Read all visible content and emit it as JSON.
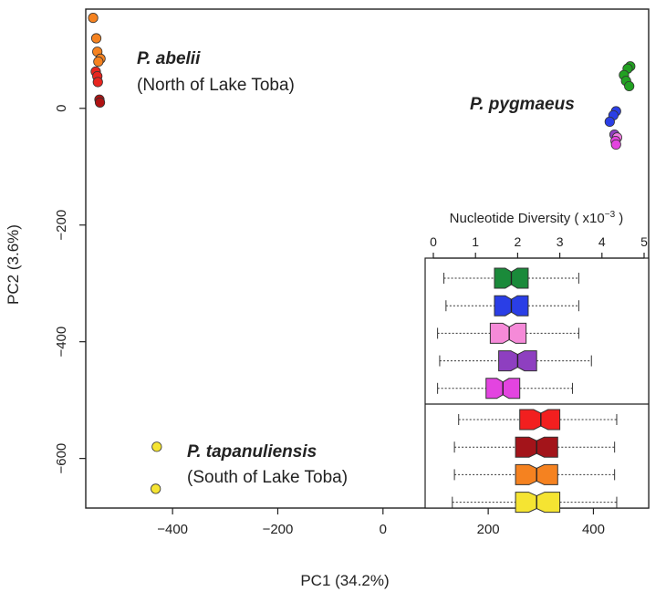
{
  "chart_data": {
    "type": "scatter",
    "xlabel": "PC1 (34.2%)",
    "ylabel": "PC2 (3.6%)",
    "xlim": [
      -565,
      505
    ],
    "ylim": [
      -685,
      170
    ],
    "xticks": [
      -400,
      -200,
      0,
      200,
      400
    ],
    "yticks": [
      0,
      -200,
      -400,
      -600
    ],
    "xtick_labels": [
      "−400",
      "−200",
      "0",
      "200",
      "400"
    ],
    "ytick_labels": [
      "0",
      "−200",
      "−400",
      "−600"
    ],
    "grid": false,
    "groups": [
      {
        "name": "P. abelii",
        "subtitle": "(North of Lake Toba)",
        "anchor": [
          -510,
          85
        ]
      },
      {
        "name": "P. pygmaeus",
        "subtitle": "",
        "anchor": [
          405,
          25
        ]
      },
      {
        "name": "P. tapanuliensis",
        "subtitle": "(South of Lake Toba)",
        "anchor": [
          -395,
          -585
        ]
      }
    ],
    "points": [
      {
        "x": -551,
        "y": 155,
        "color": "#f58220"
      },
      {
        "x": -545,
        "y": 120,
        "color": "#f58220"
      },
      {
        "x": -543,
        "y": 97,
        "color": "#f58220"
      },
      {
        "x": -537,
        "y": 85,
        "color": "#f58220"
      },
      {
        "x": -541,
        "y": 80,
        "color": "#f58220"
      },
      {
        "x": -546,
        "y": 63,
        "color": "#e8251f"
      },
      {
        "x": -543,
        "y": 55,
        "color": "#e8251f"
      },
      {
        "x": -542,
        "y": 45,
        "color": "#e8251f"
      },
      {
        "x": -539,
        "y": 15,
        "color": "#b01313"
      },
      {
        "x": -538,
        "y": 10,
        "color": "#b01313"
      },
      {
        "x": 470,
        "y": 72,
        "color": "#22a122"
      },
      {
        "x": 465,
        "y": 68,
        "color": "#22a122"
      },
      {
        "x": 458,
        "y": 57,
        "color": "#22a122"
      },
      {
        "x": 462,
        "y": 47,
        "color": "#22a122"
      },
      {
        "x": 468,
        "y": 38,
        "color": "#22a122"
      },
      {
        "x": 443,
        "y": -5,
        "color": "#2a3ee6"
      },
      {
        "x": 438,
        "y": -12,
        "color": "#2a3ee6"
      },
      {
        "x": 431,
        "y": -23,
        "color": "#2a3ee6"
      },
      {
        "x": 440,
        "y": -45,
        "color": "#8e3fc0"
      },
      {
        "x": 445,
        "y": -50,
        "color": "#f07ee0"
      },
      {
        "x": 442,
        "y": -56,
        "color": "#e344e0"
      },
      {
        "x": 443,
        "y": -62,
        "color": "#e344e0"
      },
      {
        "x": -430,
        "y": -580,
        "color": "#f5e432"
      },
      {
        "x": -432,
        "y": -652,
        "color": "#f5e432"
      }
    ],
    "inset": {
      "type": "boxplot",
      "title_prefix": "Nucleotide Diversity ( x10",
      "title_exp": "−3",
      "title_suffix": " )",
      "xlim": [
        0,
        5
      ],
      "xticks": [
        0,
        1,
        2,
        3,
        4,
        5
      ],
      "separator_after_index": 4,
      "boxes": [
        {
          "color": "#1a8a3a",
          "whisker_low": 0.25,
          "q1": 1.45,
          "median": 1.85,
          "q3": 2.25,
          "whisker_high": 3.45
        },
        {
          "color": "#2a3ee6",
          "whisker_low": 0.3,
          "q1": 1.45,
          "median": 1.85,
          "q3": 2.25,
          "whisker_high": 3.45
        },
        {
          "color": "#f58ad8",
          "whisker_low": 0.1,
          "q1": 1.35,
          "median": 1.8,
          "q3": 2.2,
          "whisker_high": 3.45
        },
        {
          "color": "#8e3fc0",
          "whisker_low": 0.15,
          "q1": 1.55,
          "median": 2.0,
          "q3": 2.45,
          "whisker_high": 3.75
        },
        {
          "color": "#e344e0",
          "whisker_low": 0.1,
          "q1": 1.25,
          "median": 1.65,
          "q3": 2.05,
          "whisker_high": 3.3
        },
        {
          "color": "#f21f1f",
          "whisker_low": 0.6,
          "q1": 2.05,
          "median": 2.55,
          "q3": 3.0,
          "whisker_high": 4.35
        },
        {
          "color": "#a3141a",
          "whisker_low": 0.5,
          "q1": 1.95,
          "median": 2.45,
          "q3": 2.95,
          "whisker_high": 4.3
        },
        {
          "color": "#f58220",
          "whisker_low": 0.5,
          "q1": 1.95,
          "median": 2.45,
          "q3": 2.95,
          "whisker_high": 4.3
        },
        {
          "color": "#f5e432",
          "whisker_low": 0.45,
          "q1": 1.95,
          "median": 2.45,
          "q3": 3.0,
          "whisker_high": 4.35
        }
      ]
    }
  }
}
